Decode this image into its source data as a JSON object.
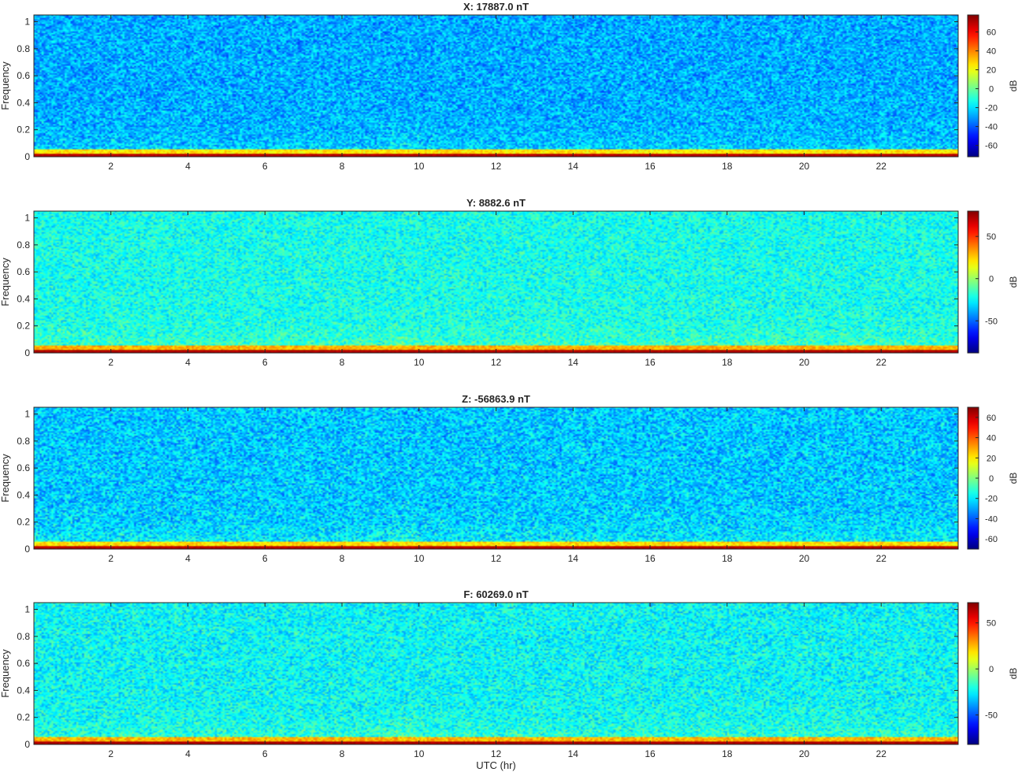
{
  "figure": {
    "xlabel": "UTC (hr)",
    "colormap": "jet",
    "colors": {
      "axis": "#262626",
      "background": "#ffffff"
    }
  },
  "chart_data": [
    {
      "type": "heatmap",
      "title": "X: 17887.0 nT",
      "xlabel": "",
      "ylabel": "Frequency",
      "colorbar_label": "dB",
      "xlim": [
        0,
        24
      ],
      "ylim": [
        0,
        1.05
      ],
      "xticks": [
        2,
        4,
        6,
        8,
        10,
        12,
        14,
        16,
        18,
        20,
        22
      ],
      "yticks": [
        0,
        0.2,
        0.4,
        0.6,
        0.8,
        1
      ],
      "yticklabels": [
        "0",
        "0.2",
        "0.4",
        "0.6",
        "0.8",
        "1"
      ],
      "clim": [
        -72,
        78
      ],
      "cticks": [
        -60,
        -40,
        -20,
        0,
        20,
        40,
        60
      ],
      "noise_floor_db": -28,
      "low_freq_band_db": 25,
      "dc_line_db": 70
    },
    {
      "type": "heatmap",
      "title": "Y: 8882.6 nT",
      "xlabel": "",
      "ylabel": "Frequency",
      "colorbar_label": "dB",
      "xlim": [
        0,
        24
      ],
      "ylim": [
        0,
        1.05
      ],
      "xticks": [
        2,
        4,
        6,
        8,
        10,
        12,
        14,
        16,
        18,
        20,
        22
      ],
      "yticks": [
        0,
        0.2,
        0.4,
        0.6,
        0.8,
        1
      ],
      "yticklabels": [
        "0",
        "0.2",
        "0.4",
        "0.6",
        "0.8",
        "1"
      ],
      "clim": [
        -88,
        80
      ],
      "cticks": [
        -50,
        0,
        50
      ],
      "noise_floor_db": -22,
      "low_freq_band_db": 30,
      "dc_line_db": 72
    },
    {
      "type": "heatmap",
      "title": "Z: -56863.9 nT",
      "xlabel": "",
      "ylabel": "Frequency",
      "colorbar_label": "dB",
      "xlim": [
        0,
        24
      ],
      "ylim": [
        0,
        1.05
      ],
      "xticks": [
        2,
        4,
        6,
        8,
        10,
        12,
        14,
        16,
        18,
        20,
        22
      ],
      "yticks": [
        0,
        0.2,
        0.4,
        0.6,
        0.8,
        1
      ],
      "yticklabels": [
        "0",
        "0.2",
        "0.4",
        "0.6",
        "0.8",
        "1"
      ],
      "clim": [
        -70,
        70
      ],
      "cticks": [
        -60,
        -40,
        -20,
        0,
        20,
        40,
        60
      ],
      "noise_floor_db": -25,
      "low_freq_band_db": 22,
      "dc_line_db": 62
    },
    {
      "type": "heatmap",
      "title": "F: 60269.0 nT",
      "xlabel": "UTC (hr)",
      "ylabel": "Frequency",
      "colorbar_label": "dB",
      "xlim": [
        0,
        24
      ],
      "ylim": [
        0,
        1.05
      ],
      "xticks": [
        2,
        4,
        6,
        8,
        10,
        12,
        14,
        16,
        18,
        20,
        22
      ],
      "yticks": [
        0,
        0.2,
        0.4,
        0.6,
        0.8,
        1
      ],
      "yticklabels": [
        "0",
        "0.2",
        "0.4",
        "0.6",
        "0.8",
        "1"
      ],
      "clim": [
        -82,
        72
      ],
      "cticks": [
        -50,
        0,
        50
      ],
      "noise_floor_db": -24,
      "low_freq_band_db": 25,
      "dc_line_db": 65
    }
  ]
}
